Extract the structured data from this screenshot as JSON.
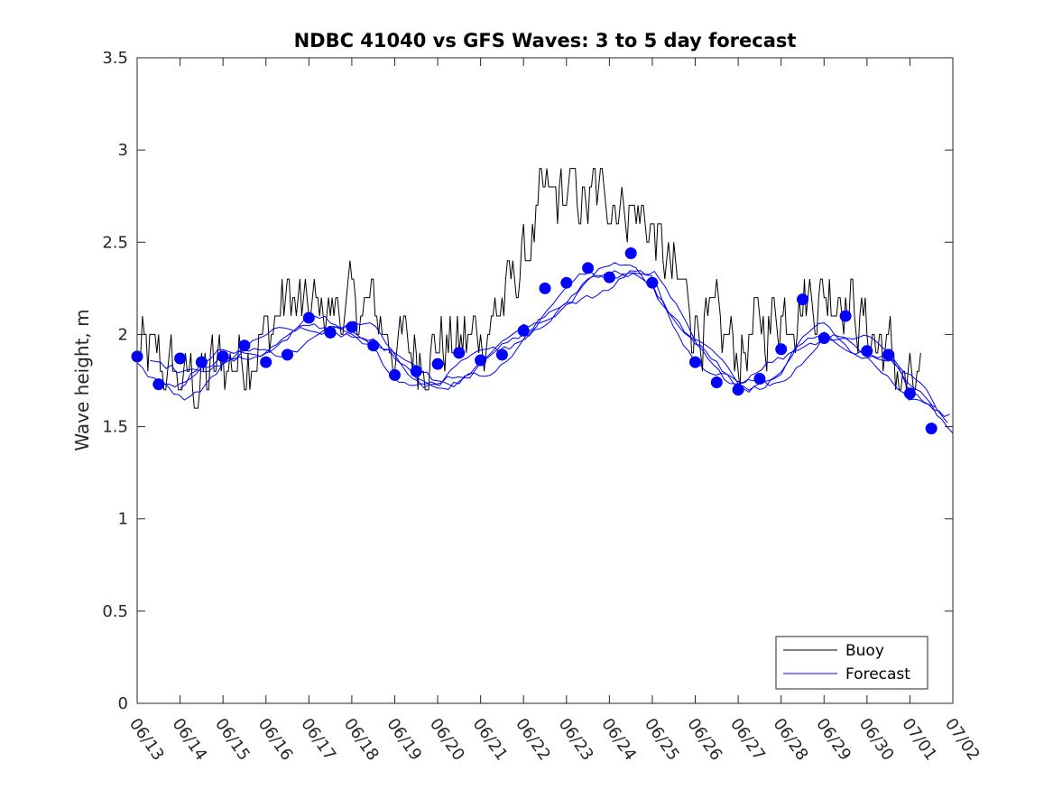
{
  "chart_data": {
    "type": "line",
    "title": "NDBC 41040 vs GFS Waves: 3 to 5 day forecast",
    "xlabel": "",
    "ylabel": "Wave height, m",
    "xlim": [
      "06/13",
      "07/02"
    ],
    "ylim": [
      0,
      3.5
    ],
    "x_tick_labels": [
      "06/13",
      "06/14",
      "06/15",
      "06/16",
      "06/17",
      "06/18",
      "06/19",
      "06/20",
      "06/21",
      "06/22",
      "06/23",
      "06/24",
      "06/25",
      "06/26",
      "06/27",
      "06/28",
      "06/29",
      "06/30",
      "07/01",
      "07/02"
    ],
    "y_tick_labels": [
      "0",
      "0.5",
      "1",
      "1.5",
      "2",
      "2.5",
      "3",
      "3.5"
    ],
    "y_ticks": [
      0,
      0.5,
      1,
      1.5,
      2,
      2.5,
      3,
      3.5
    ],
    "grid": false,
    "legend_position": "bottom-right",
    "legend": [
      {
        "label": "Buoy",
        "color": "#000000"
      },
      {
        "label": "Forecast",
        "color": "#0000ff"
      }
    ],
    "series": [
      {
        "name": "Buoy",
        "color": "#000000",
        "x": [
          "06/13",
          "06/13 12:00",
          "06/14",
          "06/14 12:00",
          "06/15",
          "06/15 12:00",
          "06/16",
          "06/16 12:00",
          "06/17",
          "06/17 12:00",
          "06/18",
          "06/18 12:00",
          "06/19",
          "06/19 12:00",
          "06/20",
          "06/20 12:00",
          "06/21",
          "06/21 12:00",
          "06/22",
          "06/22 12:00",
          "06/23",
          "06/23 12:00",
          "06/24",
          "06/24 12:00",
          "06/25",
          "06/25 12:00",
          "06/26",
          "06/26 12:00",
          "06/27",
          "06/27 12:00",
          "06/28",
          "06/28 12:00",
          "06/29",
          "06/29 12:00",
          "06/30",
          "06/30 12:00",
          "07/01",
          "07/01 06:00"
        ],
        "y": [
          1.9,
          1.85,
          1.75,
          1.75,
          1.85,
          1.9,
          2.0,
          2.2,
          2.1,
          2.15,
          2.15,
          2.1,
          1.95,
          1.9,
          1.95,
          1.95,
          2.0,
          2.15,
          2.4,
          2.7,
          2.75,
          2.7,
          2.8,
          2.7,
          2.55,
          2.3,
          2.1,
          2.0,
          1.9,
          2.0,
          2.15,
          2.2,
          2.25,
          2.25,
          2.0,
          1.9,
          1.7,
          1.7
        ]
      },
      {
        "name": "Forecast",
        "color": "#0000ff",
        "x": [
          "06/13",
          "06/13 12:00",
          "06/14",
          "06/14 12:00",
          "06/15",
          "06/15 12:00",
          "06/16",
          "06/16 12:00",
          "06/17",
          "06/17 12:00",
          "06/18",
          "06/18 12:00",
          "06/19",
          "06/19 12:00",
          "06/20",
          "06/20 12:00",
          "06/21",
          "06/21 12:00",
          "06/22",
          "06/22 12:00",
          "06/23",
          "06/23 12:00",
          "06/24",
          "06/24 12:00",
          "06/25",
          "06/25 12:00",
          "06/26",
          "06/26 12:00",
          "06/27",
          "06/27 12:00",
          "06/28",
          "06/28 12:00",
          "06/29",
          "06/29 12:00",
          "06/30",
          "06/30 12:00",
          "07/01",
          "07/01 12:00",
          "07/02"
        ],
        "y": [
          1.85,
          1.78,
          1.72,
          1.78,
          1.85,
          1.9,
          1.93,
          1.97,
          2.02,
          2.03,
          2.02,
          1.98,
          1.85,
          1.75,
          1.72,
          1.78,
          1.85,
          1.9,
          1.98,
          2.08,
          2.2,
          2.28,
          2.3,
          2.34,
          2.3,
          2.1,
          1.92,
          1.82,
          1.72,
          1.75,
          1.8,
          1.92,
          2.0,
          1.95,
          1.92,
          1.85,
          1.7,
          1.62,
          1.5
        ]
      }
    ],
    "markers": {
      "name": "Forecast",
      "color": "#0000ff",
      "points": [
        {
          "x": "06/13",
          "y": 1.88
        },
        {
          "x": "06/13 12:00",
          "y": 1.73
        },
        {
          "x": "06/14",
          "y": 1.87
        },
        {
          "x": "06/14 12:00",
          "y": 1.85
        },
        {
          "x": "06/15",
          "y": 1.88
        },
        {
          "x": "06/15 12:00",
          "y": 1.94
        },
        {
          "x": "06/16",
          "y": 1.85
        },
        {
          "x": "06/16 12:00",
          "y": 1.89
        },
        {
          "x": "06/17",
          "y": 2.09
        },
        {
          "x": "06/17 12:00",
          "y": 2.01
        },
        {
          "x": "06/18",
          "y": 2.04
        },
        {
          "x": "06/18 12:00",
          "y": 1.94
        },
        {
          "x": "06/19",
          "y": 1.78
        },
        {
          "x": "06/19 12:00",
          "y": 1.8
        },
        {
          "x": "06/20",
          "y": 1.84
        },
        {
          "x": "06/20 12:00",
          "y": 1.9
        },
        {
          "x": "06/21",
          "y": 1.86
        },
        {
          "x": "06/21 12:00",
          "y": 1.89
        },
        {
          "x": "06/22",
          "y": 2.02
        },
        {
          "x": "06/22 12:00",
          "y": 2.25
        },
        {
          "x": "06/23",
          "y": 2.28
        },
        {
          "x": "06/23 12:00",
          "y": 2.36
        },
        {
          "x": "06/24",
          "y": 2.31
        },
        {
          "x": "06/24 12:00",
          "y": 2.44
        },
        {
          "x": "06/25",
          "y": 2.28
        },
        {
          "x": "06/26",
          "y": 1.85
        },
        {
          "x": "06/26 12:00",
          "y": 1.74
        },
        {
          "x": "06/27",
          "y": 1.7
        },
        {
          "x": "06/27 12:00",
          "y": 1.76
        },
        {
          "x": "06/28",
          "y": 1.92
        },
        {
          "x": "06/28 12:00",
          "y": 2.19
        },
        {
          "x": "06/29",
          "y": 1.98
        },
        {
          "x": "06/29 12:00",
          "y": 2.1
        },
        {
          "x": "06/30",
          "y": 1.91
        },
        {
          "x": "06/30 12:00",
          "y": 1.89
        },
        {
          "x": "07/01",
          "y": 1.68
        },
        {
          "x": "07/01 12:00",
          "y": 1.49
        }
      ]
    }
  }
}
